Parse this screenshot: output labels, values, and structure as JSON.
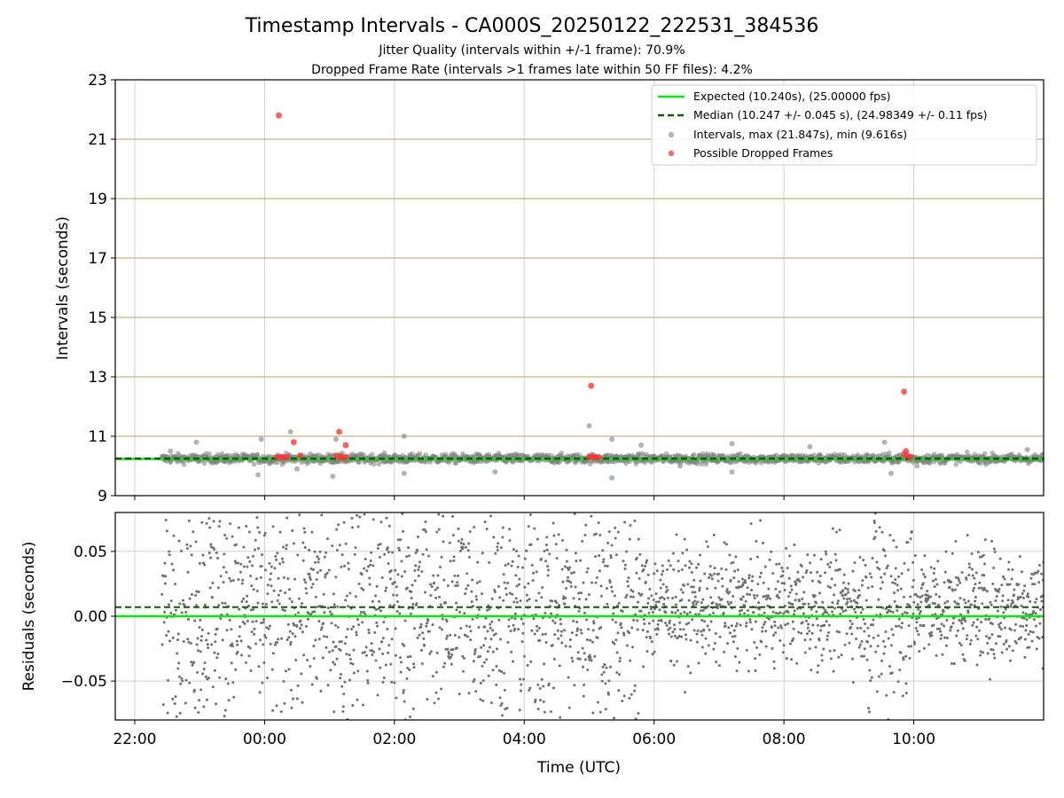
{
  "title": "Timestamp Intervals - CA000S_20250122_222531_384536",
  "subtitle_1": "Jitter Quality (intervals within +/-1 frame): 70.9%",
  "subtitle_2": "Dropped Frame Rate (intervals >1 frames late within 50 FF files): 4.2%",
  "colors": {
    "expected": "#00ee00",
    "median": "#006400",
    "intervals": "#808080",
    "dropped": "#ff3333",
    "hline": "#c8b878",
    "grid": "#d0d0d0"
  },
  "chart_data": [
    {
      "type": "scatter",
      "ylabel": "Intervals (seconds)",
      "ylim": [
        9,
        23
      ],
      "yticks": [
        9,
        11,
        13,
        15,
        17,
        19,
        21,
        23
      ],
      "xlim_hours": [
        21.7,
        36
      ],
      "xticks_hours": [
        22,
        24,
        26,
        28,
        30,
        32,
        34
      ],
      "horizontal_lines": [
        11,
        13,
        15,
        17,
        19,
        21
      ],
      "grid": "vertical",
      "legend_position": "top-right",
      "legend": [
        "Expected (10.240s), (25.00000 fps)",
        "Median (10.247 +/- 0.045 s), (24.98349 +/- 0.11 fps)",
        "Intervals, max (21.847s), min (9.616s)",
        "Possible Dropped Frames"
      ],
      "expected": 10.24,
      "median": 10.247,
      "series_intervals_range": [
        22.42,
        36
      ],
      "interval_outliers": [
        {
          "x": 22.55,
          "y": 10.5
        },
        {
          "x": 22.95,
          "y": 10.8
        },
        {
          "x": 23.9,
          "y": 9.7
        },
        {
          "x": 23.95,
          "y": 10.9
        },
        {
          "x": 24.4,
          "y": 11.15
        },
        {
          "x": 24.5,
          "y": 9.9
        },
        {
          "x": 25.05,
          "y": 9.65
        },
        {
          "x": 25.1,
          "y": 10.9
        },
        {
          "x": 26.15,
          "y": 11.0
        },
        {
          "x": 26.15,
          "y": 9.75
        },
        {
          "x": 27.55,
          "y": 9.8
        },
        {
          "x": 29.0,
          "y": 11.35
        },
        {
          "x": 29.35,
          "y": 10.9
        },
        {
          "x": 29.35,
          "y": 9.6
        },
        {
          "x": 29.8,
          "y": 10.7
        },
        {
          "x": 30.4,
          "y": 10.0
        },
        {
          "x": 31.2,
          "y": 10.75
        },
        {
          "x": 31.2,
          "y": 9.8
        },
        {
          "x": 32.4,
          "y": 10.65
        },
        {
          "x": 33.55,
          "y": 10.8
        },
        {
          "x": 33.65,
          "y": 9.75
        },
        {
          "x": 34.05,
          "y": 10.0
        },
        {
          "x": 35.75,
          "y": 10.55
        }
      ],
      "dropped_frames": [
        {
          "x": 24.22,
          "y": 21.8
        },
        {
          "x": 24.45,
          "y": 10.8
        },
        {
          "x": 24.55,
          "y": 10.35
        },
        {
          "x": 25.15,
          "y": 11.15
        },
        {
          "x": 25.25,
          "y": 10.7
        },
        {
          "x": 29.03,
          "y": 12.7
        },
        {
          "x": 33.85,
          "y": 12.5
        },
        {
          "x": 24.2,
          "y": 10.3
        },
        {
          "x": 24.25,
          "y": 10.3
        },
        {
          "x": 24.3,
          "y": 10.3
        },
        {
          "x": 24.35,
          "y": 10.3
        },
        {
          "x": 25.1,
          "y": 10.35
        },
        {
          "x": 25.15,
          "y": 10.3
        },
        {
          "x": 25.2,
          "y": 10.3
        },
        {
          "x": 25.25,
          "y": 10.3
        },
        {
          "x": 29.0,
          "y": 10.3
        },
        {
          "x": 29.05,
          "y": 10.3
        },
        {
          "x": 29.1,
          "y": 10.3
        },
        {
          "x": 29.15,
          "y": 10.3
        },
        {
          "x": 33.85,
          "y": 10.4
        },
        {
          "x": 33.9,
          "y": 10.35
        },
        {
          "x": 33.95,
          "y": 10.3
        },
        {
          "x": 33.88,
          "y": 10.5
        }
      ]
    },
    {
      "type": "scatter",
      "ylabel": "Residuals (seconds)",
      "xlabel": "Time (UTC)",
      "ylim": [
        -0.08,
        0.08
      ],
      "yticks": [
        -0.05,
        0.0,
        0.05
      ],
      "ytick_labels": [
        "−0.05",
        "0.00",
        "0.05"
      ],
      "xlim_hours": [
        21.7,
        36
      ],
      "xticks_hours": [
        22,
        24,
        26,
        28,
        30,
        32,
        34
      ],
      "xtick_labels": [
        "22:00",
        "00:00",
        "02:00",
        "04:00",
        "06:00",
        "08:00",
        "10:00"
      ],
      "grid": "both",
      "expected_residual": 0.0,
      "median_residual": 0.007,
      "series_residuals_range": [
        22.42,
        36
      ]
    }
  ]
}
